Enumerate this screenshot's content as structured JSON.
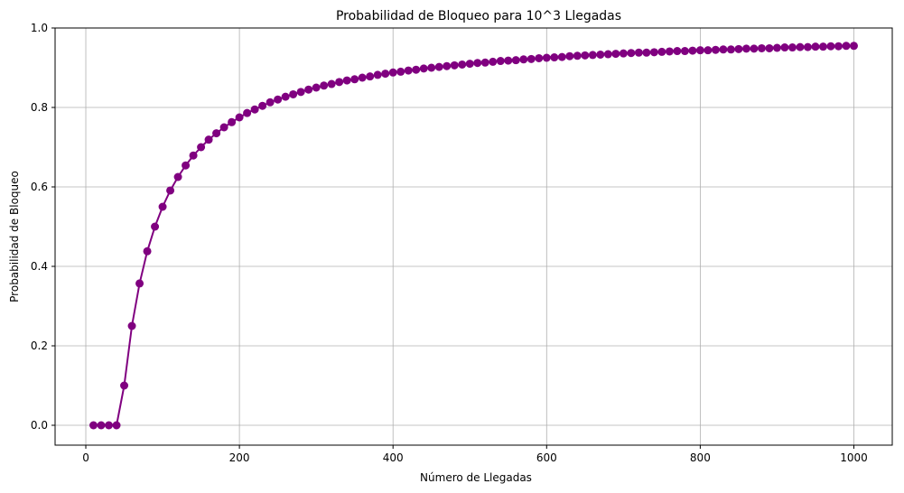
{
  "chart_data": {
    "type": "line",
    "title": "Probabilidad de Bloqueo para 10^3 Llegadas",
    "xlabel": "Número de Llegadas",
    "ylabel": "Probabilidad de Bloqueo",
    "xlim": [
      -40,
      1050
    ],
    "ylim": [
      -0.05,
      1.0
    ],
    "xticks": [
      0,
      200,
      400,
      600,
      800,
      1000
    ],
    "yticks": [
      0.0,
      0.2,
      0.4,
      0.6,
      0.8,
      1.0
    ],
    "xtick_labels": [
      "0",
      "200",
      "400",
      "600",
      "800",
      "1000"
    ],
    "ytick_labels": [
      "0.0",
      "0.2",
      "0.4",
      "0.6",
      "0.8",
      "1.0"
    ],
    "grid": true,
    "color": "#800080",
    "marker": "circle",
    "x": [
      10,
      20,
      30,
      40,
      50,
      60,
      70,
      80,
      90,
      100,
      110,
      120,
      130,
      140,
      150,
      160,
      170,
      180,
      190,
      200,
      210,
      220,
      230,
      240,
      250,
      260,
      270,
      280,
      290,
      300,
      310,
      320,
      330,
      340,
      350,
      360,
      370,
      380,
      390,
      400,
      410,
      420,
      430,
      440,
      450,
      460,
      470,
      480,
      490,
      500,
      510,
      520,
      530,
      540,
      550,
      560,
      570,
      580,
      590,
      600,
      610,
      620,
      630,
      640,
      650,
      660,
      670,
      680,
      690,
      700,
      710,
      720,
      730,
      740,
      750,
      760,
      770,
      780,
      790,
      800,
      810,
      820,
      830,
      840,
      850,
      860,
      870,
      880,
      890,
      900,
      910,
      920,
      930,
      940,
      950,
      960,
      970,
      980,
      990,
      1000
    ],
    "y": [
      0.0,
      0.0,
      0.0,
      0.0,
      0.1,
      0.25,
      0.357,
      0.438,
      0.5,
      0.55,
      0.591,
      0.625,
      0.654,
      0.679,
      0.7,
      0.719,
      0.735,
      0.75,
      0.763,
      0.775,
      0.786,
      0.795,
      0.804,
      0.813,
      0.82,
      0.827,
      0.833,
      0.839,
      0.845,
      0.85,
      0.855,
      0.859,
      0.864,
      0.868,
      0.871,
      0.875,
      0.878,
      0.882,
      0.885,
      0.888,
      0.89,
      0.893,
      0.895,
      0.898,
      0.9,
      0.902,
      0.904,
      0.906,
      0.908,
      0.91,
      0.912,
      0.913,
      0.915,
      0.917,
      0.918,
      0.919,
      0.921,
      0.922,
      0.924,
      0.925,
      0.926,
      0.927,
      0.929,
      0.93,
      0.931,
      0.932,
      0.933,
      0.934,
      0.935,
      0.936,
      0.937,
      0.938,
      0.938,
      0.939,
      0.94,
      0.941,
      0.942,
      0.942,
      0.943,
      0.944,
      0.944,
      0.945,
      0.946,
      0.946,
      0.947,
      0.948,
      0.948,
      0.949,
      0.949,
      0.95,
      0.951,
      0.951,
      0.952,
      0.952,
      0.953,
      0.953,
      0.954,
      0.954,
      0.955,
      0.955
    ]
  }
}
